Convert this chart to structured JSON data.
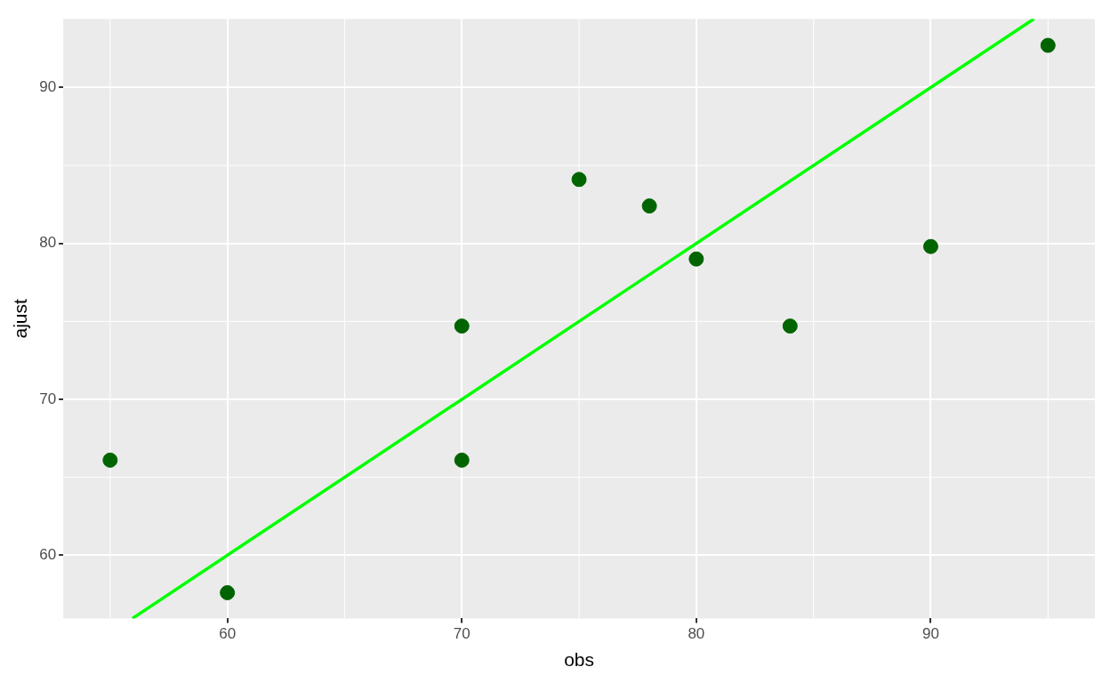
{
  "chart_data": {
    "type": "scatter",
    "xlabel": "obs",
    "ylabel": "ajust",
    "series": [
      {
        "type": "scatter",
        "marker": "circle",
        "color": "#006400",
        "x": [
          55,
          60,
          70,
          70,
          75,
          78,
          80,
          84,
          90,
          95
        ],
        "values": [
          66.1,
          57.6,
          74.7,
          66.1,
          84.1,
          82.4,
          79.0,
          74.7,
          79.8,
          92.7
        ]
      },
      {
        "type": "line",
        "marker": "none",
        "color": "#00ff00",
        "x": [
          55.95,
          94.4
        ],
        "values": [
          55.95,
          94.4
        ]
      }
    ],
    "xlim": [
      53.0,
      97.0
    ],
    "ylim": [
      55.95,
      94.4
    ],
    "xticks": [
      60,
      70,
      80,
      90
    ],
    "yticks": [
      60,
      70,
      80,
      90
    ],
    "grid": true,
    "legend": false
  }
}
